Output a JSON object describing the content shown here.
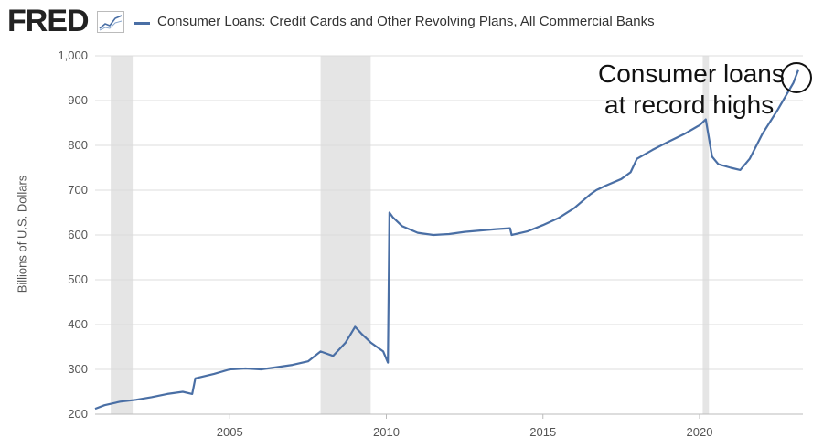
{
  "header": {
    "logo": "FRED",
    "logo_icon": "line-graph-icon"
  },
  "colors": {
    "series": "#4a6fa5",
    "recession": "#e5e5e5",
    "grid": "#dcdcdc",
    "annotation": "#111111"
  },
  "annotation": {
    "line1": "Consumer loans",
    "line2": "at record highs"
  },
  "chart_data": {
    "type": "line",
    "title": "",
    "ylabel": "Billions of U.S. Dollars",
    "xlabel": "",
    "ylim": [
      200,
      1000
    ],
    "xlim": [
      2000.7,
      2023.3
    ],
    "yticks": [
      200,
      300,
      400,
      500,
      600,
      700,
      800,
      900,
      1000
    ],
    "ytick_labels": [
      "200",
      "300",
      "400",
      "500",
      "600",
      "700",
      "800",
      "900",
      "1,000"
    ],
    "xticks": [
      2005,
      2010,
      2015,
      2020
    ],
    "xtick_labels": [
      "2005",
      "2010",
      "2015",
      "2020"
    ],
    "grid": "horizontal",
    "legend": "top-left",
    "recessions": [
      [
        2001.2,
        2001.9
      ],
      [
        2007.9,
        2009.5
      ],
      [
        2020.1,
        2020.3
      ]
    ],
    "series": [
      {
        "name": "Consumer Loans: Credit Cards and Other Revolving Plans, All Commercial Banks",
        "x": [
          2000.7,
          2001.0,
          2001.5,
          2002.0,
          2002.5,
          2003.0,
          2003.5,
          2003.8,
          2003.9,
          2004.5,
          2005.0,
          2005.5,
          2006.0,
          2006.5,
          2007.0,
          2007.5,
          2007.9,
          2008.3,
          2008.7,
          2009.0,
          2009.2,
          2009.5,
          2009.9,
          2010.05,
          2010.1,
          2010.2,
          2010.5,
          2011.0,
          2011.5,
          2012.0,
          2012.5,
          2013.0,
          2013.5,
          2013.95,
          2014.0,
          2014.5,
          2015.0,
          2015.5,
          2016.0,
          2016.5,
          2016.7,
          2017.0,
          2017.5,
          2017.8,
          2018.0,
          2018.5,
          2019.0,
          2019.5,
          2020.0,
          2020.2,
          2020.4,
          2020.6,
          2021.0,
          2021.3,
          2021.6,
          2022.0,
          2022.5,
          2023.0,
          2023.15
        ],
        "y": [
          212,
          220,
          228,
          232,
          238,
          245,
          250,
          245,
          280,
          290,
          300,
          302,
          300,
          305,
          310,
          318,
          340,
          330,
          360,
          395,
          380,
          360,
          340,
          315,
          650,
          640,
          620,
          605,
          600,
          602,
          607,
          610,
          613,
          615,
          600,
          608,
          622,
          638,
          660,
          690,
          700,
          710,
          725,
          740,
          770,
          790,
          808,
          825,
          845,
          858,
          775,
          758,
          750,
          745,
          770,
          825,
          880,
          940,
          968
        ]
      }
    ]
  }
}
